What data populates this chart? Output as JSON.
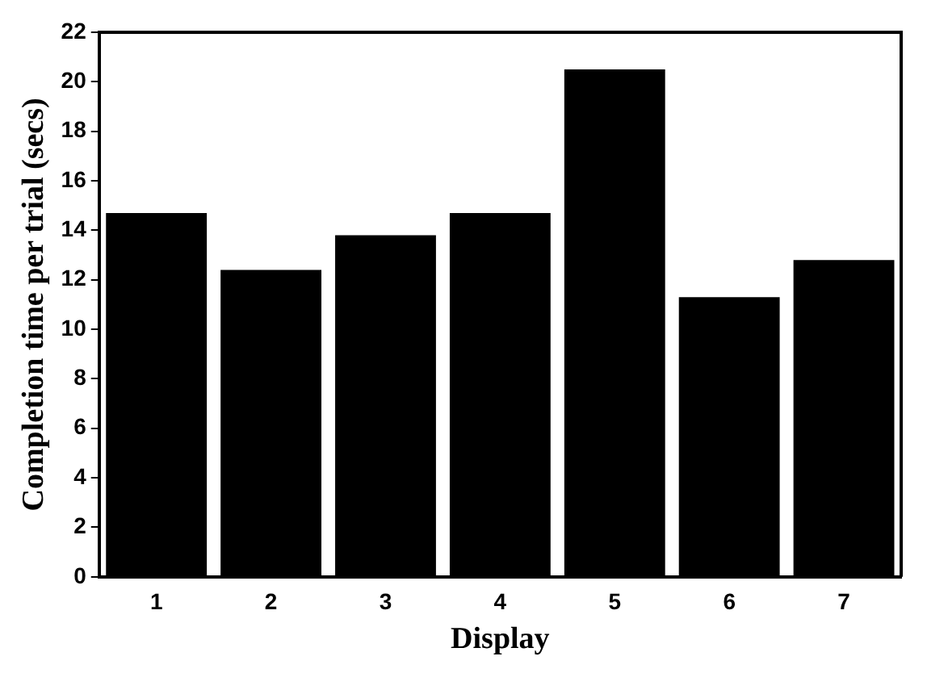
{
  "chart_data": {
    "type": "bar",
    "xlabel": "Display",
    "ylabel": "Completion time per trial (secs)",
    "categories": [
      "1",
      "2",
      "3",
      "4",
      "5",
      "6",
      "7"
    ],
    "values": [
      14.7,
      12.4,
      13.8,
      14.7,
      20.5,
      11.3,
      12.8
    ],
    "color": "#000000",
    "ylim": [
      0,
      22
    ],
    "yticks": [
      0,
      2,
      4,
      6,
      8,
      10,
      12,
      14,
      16,
      18,
      20,
      22
    ],
    "grid": false,
    "legend": false
  }
}
